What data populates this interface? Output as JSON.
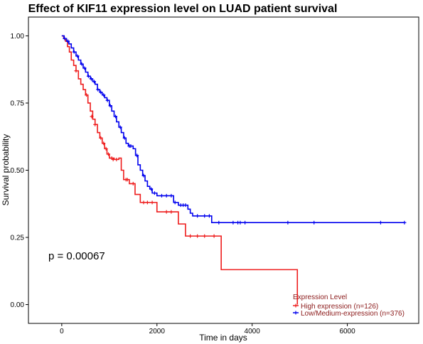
{
  "chart_data": {
    "type": "line",
    "title": "Effect of KIF11 expression level on LUAD patient survival",
    "xlabel": "Time in days",
    "ylabel": "Survival probability",
    "xlim": [
      -700,
      7500
    ],
    "ylim": [
      -0.07,
      1.07
    ],
    "xticks": [
      0,
      2000,
      4000,
      6000
    ],
    "xtick_labels": [
      "0",
      "2000",
      "4000",
      "6000"
    ],
    "yticks": [
      0.0,
      0.25,
      0.5,
      0.75,
      1.0
    ],
    "ytick_labels": [
      "0.00",
      "0.25",
      "0.50",
      "0.75",
      "1.00"
    ],
    "grid": false,
    "annotation": "p = 0.00067",
    "legend": {
      "title": "Expression Level",
      "placement": "bottom-right",
      "color": "#8b1a1a"
    },
    "series": [
      {
        "name": "High expression (n=126)",
        "color": "#ee1c1c",
        "steps": [
          [
            0,
            1.0
          ],
          [
            40,
            0.99
          ],
          [
            80,
            0.98
          ],
          [
            120,
            0.96
          ],
          [
            160,
            0.94
          ],
          [
            200,
            0.91
          ],
          [
            250,
            0.89
          ],
          [
            300,
            0.87
          ],
          [
            350,
            0.84
          ],
          [
            400,
            0.82
          ],
          [
            450,
            0.8
          ],
          [
            500,
            0.78
          ],
          [
            550,
            0.75
          ],
          [
            600,
            0.72
          ],
          [
            650,
            0.69
          ],
          [
            700,
            0.67
          ],
          [
            750,
            0.64
          ],
          [
            800,
            0.62
          ],
          [
            850,
            0.6
          ],
          [
            900,
            0.58
          ],
          [
            950,
            0.56
          ],
          [
            1000,
            0.545
          ],
          [
            1100,
            0.54
          ],
          [
            1200,
            0.545
          ],
          [
            1250,
            0.5
          ],
          [
            1300,
            0.465
          ],
          [
            1420,
            0.45
          ],
          [
            1540,
            0.41
          ],
          [
            1650,
            0.38
          ],
          [
            2000,
            0.345
          ],
          [
            2450,
            0.3
          ],
          [
            2600,
            0.255
          ],
          [
            3350,
            0.13
          ],
          [
            4950,
            0.0
          ]
        ],
        "end_x": 4950,
        "censors": [
          [
            300,
            0.87
          ],
          [
            520,
            0.78
          ],
          [
            630,
            0.7
          ],
          [
            700,
            0.67
          ],
          [
            820,
            0.62
          ],
          [
            880,
            0.6
          ],
          [
            930,
            0.58
          ],
          [
            980,
            0.56
          ],
          [
            1050,
            0.545
          ],
          [
            1080,
            0.54
          ],
          [
            1150,
            0.54
          ],
          [
            1350,
            0.465
          ],
          [
            1380,
            0.465
          ],
          [
            1500,
            0.45
          ],
          [
            1720,
            0.38
          ],
          [
            1800,
            0.38
          ],
          [
            1900,
            0.38
          ],
          [
            2200,
            0.345
          ],
          [
            2300,
            0.345
          ],
          [
            2700,
            0.255
          ],
          [
            2850,
            0.255
          ],
          [
            3000,
            0.255
          ],
          [
            3200,
            0.255
          ]
        ]
      },
      {
        "name": "Low/Medium-expression (n=376)",
        "color": "#0000ee",
        "steps": [
          [
            0,
            1.0
          ],
          [
            50,
            0.99
          ],
          [
            100,
            0.98
          ],
          [
            150,
            0.97
          ],
          [
            200,
            0.955
          ],
          [
            250,
            0.94
          ],
          [
            300,
            0.925
          ],
          [
            350,
            0.91
          ],
          [
            400,
            0.895
          ],
          [
            450,
            0.88
          ],
          [
            500,
            0.865
          ],
          [
            550,
            0.85
          ],
          [
            600,
            0.84
          ],
          [
            650,
            0.83
          ],
          [
            700,
            0.82
          ],
          [
            750,
            0.8
          ],
          [
            800,
            0.79
          ],
          [
            850,
            0.78
          ],
          [
            900,
            0.77
          ],
          [
            950,
            0.76
          ],
          [
            1000,
            0.74
          ],
          [
            1050,
            0.72
          ],
          [
            1100,
            0.7
          ],
          [
            1150,
            0.68
          ],
          [
            1200,
            0.66
          ],
          [
            1250,
            0.64
          ],
          [
            1300,
            0.62
          ],
          [
            1350,
            0.6
          ],
          [
            1400,
            0.59
          ],
          [
            1500,
            0.58
          ],
          [
            1550,
            0.555
          ],
          [
            1600,
            0.52
          ],
          [
            1650,
            0.5
          ],
          [
            1700,
            0.48
          ],
          [
            1750,
            0.46
          ],
          [
            1800,
            0.44
          ],
          [
            1850,
            0.43
          ],
          [
            1900,
            0.415
          ],
          [
            2000,
            0.405
          ],
          [
            2350,
            0.38
          ],
          [
            2450,
            0.37
          ],
          [
            2650,
            0.355
          ],
          [
            2700,
            0.34
          ],
          [
            2750,
            0.33
          ],
          [
            3150,
            0.305
          ]
        ],
        "end_x": 7200,
        "censors": [
          [
            60,
            0.99
          ],
          [
            130,
            0.98
          ],
          [
            260,
            0.94
          ],
          [
            330,
            0.925
          ],
          [
            420,
            0.895
          ],
          [
            480,
            0.88
          ],
          [
            560,
            0.85
          ],
          [
            620,
            0.84
          ],
          [
            680,
            0.83
          ],
          [
            760,
            0.8
          ],
          [
            820,
            0.79
          ],
          [
            880,
            0.78
          ],
          [
            960,
            0.76
          ],
          [
            1020,
            0.74
          ],
          [
            1130,
            0.7
          ],
          [
            1230,
            0.66
          ],
          [
            1320,
            0.62
          ],
          [
            1420,
            0.59
          ],
          [
            1450,
            0.59
          ],
          [
            1580,
            0.555
          ],
          [
            1720,
            0.48
          ],
          [
            1880,
            0.43
          ],
          [
            1950,
            0.415
          ],
          [
            2100,
            0.405
          ],
          [
            2200,
            0.405
          ],
          [
            2300,
            0.405
          ],
          [
            2380,
            0.38
          ],
          [
            2500,
            0.37
          ],
          [
            2550,
            0.37
          ],
          [
            2600,
            0.37
          ],
          [
            2850,
            0.33
          ],
          [
            3000,
            0.33
          ],
          [
            3100,
            0.33
          ],
          [
            3300,
            0.305
          ],
          [
            3600,
            0.305
          ],
          [
            3700,
            0.305
          ],
          [
            3750,
            0.305
          ],
          [
            3850,
            0.305
          ],
          [
            4750,
            0.305
          ],
          [
            5300,
            0.305
          ],
          [
            6700,
            0.305
          ],
          [
            7200,
            0.305
          ]
        ]
      }
    ]
  }
}
